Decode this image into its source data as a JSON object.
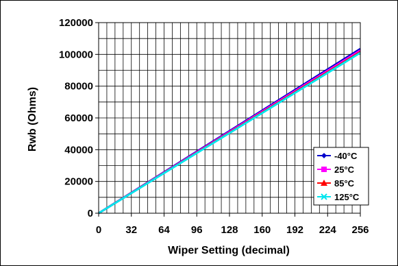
{
  "chart_data": {
    "type": "line",
    "xlabel": "Wiper Setting (decimal)",
    "ylabel": "Rwb (Ohms)",
    "xlim": [
      0,
      256
    ],
    "ylim": [
      0,
      120000
    ],
    "x_ticks": [
      0,
      32,
      64,
      96,
      128,
      160,
      192,
      224,
      256
    ],
    "y_ticks": [
      0,
      20000,
      40000,
      60000,
      80000,
      100000,
      120000
    ],
    "x_tick_labels": [
      "0",
      "32",
      "64",
      "96",
      "128",
      "160",
      "192",
      "224",
      "256"
    ],
    "y_tick_labels": [
      "0",
      "20000",
      "40000",
      "60000",
      "80000",
      "100000",
      "120000"
    ],
    "grid": true,
    "legend_position": "bottom-right",
    "x": [
      0,
      256
    ],
    "series": [
      {
        "name": "-40°C",
        "color": "#0000CC",
        "marker": "diamond",
        "values": [
          0,
          103500
        ]
      },
      {
        "name": "25°C",
        "color": "#FF00FF",
        "marker": "square",
        "values": [
          0,
          102500
        ]
      },
      {
        "name": "85°C",
        "color": "#FF0000",
        "marker": "triangle",
        "values": [
          0,
          101600
        ]
      },
      {
        "name": "125°C",
        "color": "#00E5EE",
        "marker": "x",
        "values": [
          0,
          101000
        ]
      }
    ]
  }
}
